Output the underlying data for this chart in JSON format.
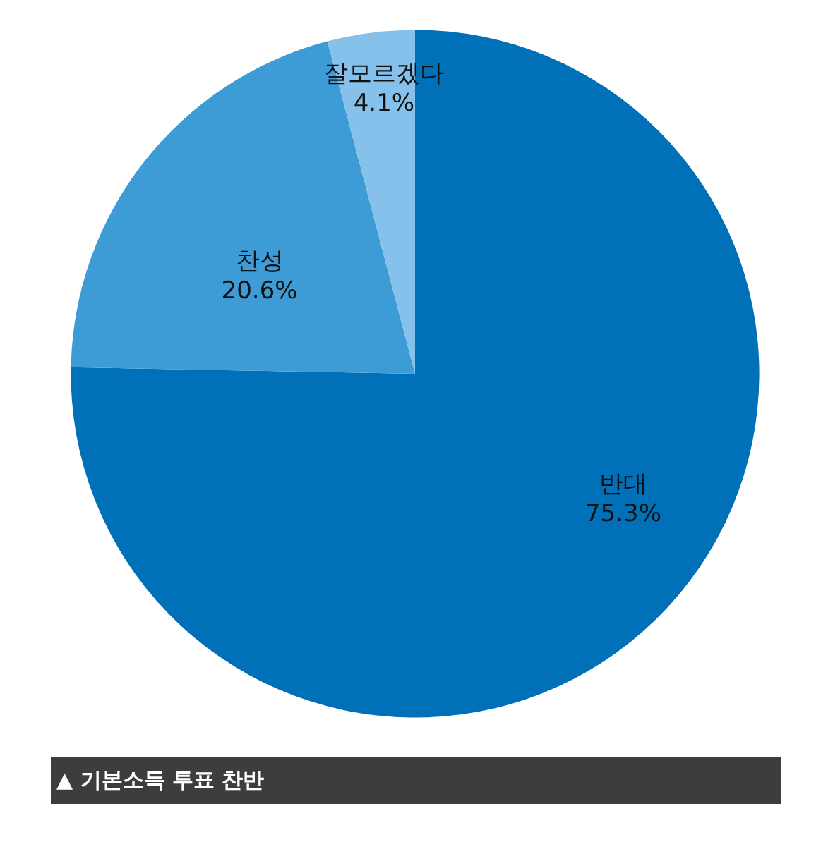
{
  "chart_data": {
    "type": "pie",
    "categories": [
      "반대",
      "찬성",
      "잘모르겠다"
    ],
    "values": [
      75.3,
      20.6,
      4.1
    ],
    "value_labels": [
      "75.3%",
      "20.6%",
      "4.1%"
    ],
    "colors": [
      "#0070b8",
      "#3d9bd6",
      "#85c1ea"
    ],
    "legend": false,
    "annotations": [
      "▲ 기본소득 투표 찬반"
    ]
  }
}
